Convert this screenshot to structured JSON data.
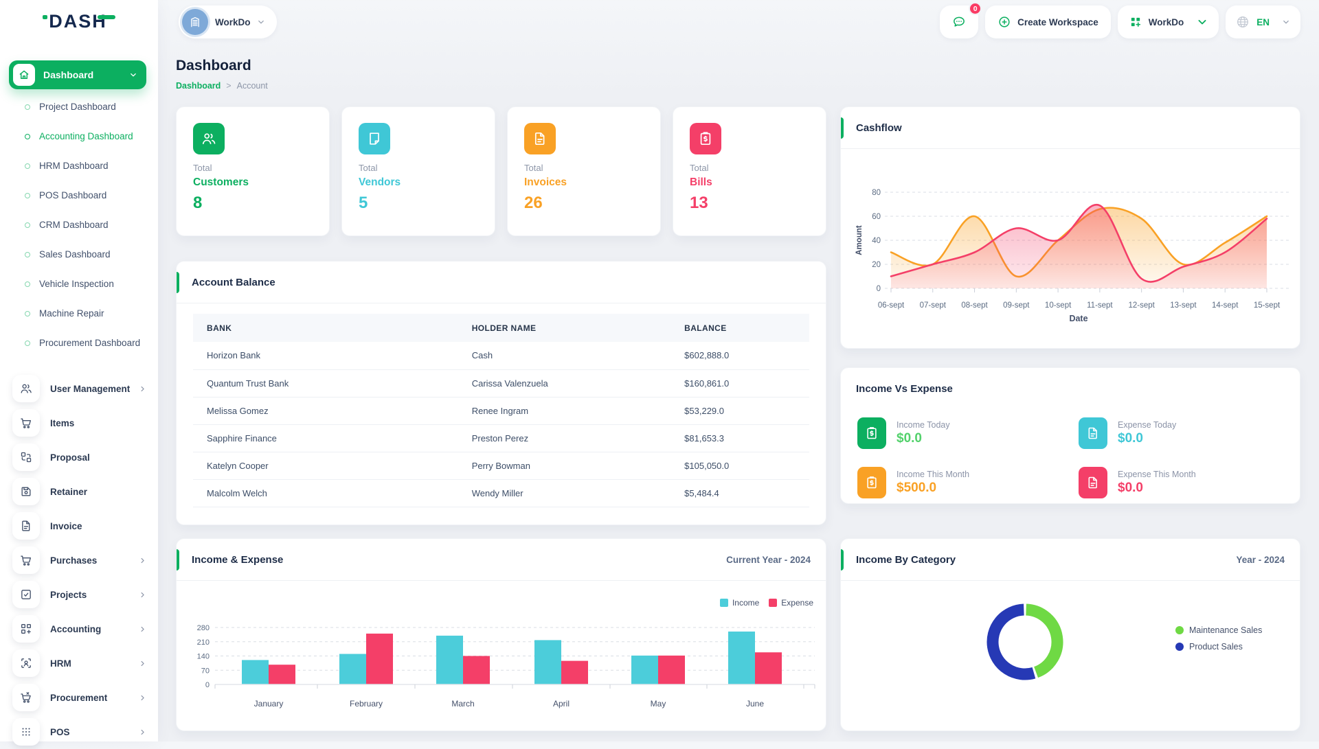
{
  "brand": {
    "logo_text": "DASH",
    "accent": "#0caf60"
  },
  "sidebar": {
    "main_item": {
      "label": "Dashboard"
    },
    "sub_items": [
      {
        "label": "Project Dashboard",
        "active": false
      },
      {
        "label": "Accounting Dashboard",
        "active": true
      },
      {
        "label": "HRM Dashboard",
        "active": false
      },
      {
        "label": "POS Dashboard",
        "active": false
      },
      {
        "label": "CRM Dashboard",
        "active": false
      },
      {
        "label": "Sales Dashboard",
        "active": false
      },
      {
        "label": "Vehicle Inspection",
        "active": false
      },
      {
        "label": "Machine Repair",
        "active": false
      },
      {
        "label": "Procurement Dashboard",
        "active": false
      }
    ],
    "sections": [
      {
        "label": "User Management",
        "icon": "users2",
        "chevron": true
      },
      {
        "label": "Items",
        "icon": "cart",
        "chevron": false
      },
      {
        "label": "Proposal",
        "icon": "swap",
        "chevron": false
      },
      {
        "label": "Retainer",
        "icon": "save",
        "chevron": false
      },
      {
        "label": "Invoice",
        "icon": "doclines",
        "chevron": false
      },
      {
        "label": "Purchases",
        "icon": "cart",
        "chevron": true
      },
      {
        "label": "Projects",
        "icon": "check",
        "chevron": true
      },
      {
        "label": "Accounting",
        "icon": "gridplus",
        "chevron": true
      },
      {
        "label": "HRM",
        "icon": "hrm",
        "chevron": true
      },
      {
        "label": "Procurement",
        "icon": "cartx",
        "chevron": true
      },
      {
        "label": "POS",
        "icon": "dots",
        "chevron": true
      }
    ]
  },
  "header": {
    "workspace_label": "WorkDo",
    "chat_badge": "0",
    "create_workspace_label": "Create Workspace",
    "account_label": "WorkDo",
    "language_label": "EN"
  },
  "page": {
    "title": "Dashboard",
    "breadcrumb_root": "Dashboard",
    "breadcrumb_sep": ">",
    "breadcrumb_current": "Account"
  },
  "stats": [
    {
      "prefix": "Total",
      "label": "Customers",
      "value": "8",
      "color": "#0caf60",
      "icon": "users2"
    },
    {
      "prefix": "Total",
      "label": "Vendors",
      "value": "5",
      "color": "#3fc7d6",
      "icon": "note"
    },
    {
      "prefix": "Total",
      "label": "Invoices",
      "value": "26",
      "color": "#f9a125",
      "icon": "doclines"
    },
    {
      "prefix": "Total",
      "label": "Bills",
      "value": "13",
      "color": "#f43f68",
      "icon": "clipdollar"
    }
  ],
  "account_balance": {
    "title": "Account Balance",
    "columns": [
      "BANK",
      "HOLDER NAME",
      "BALANCE"
    ],
    "rows": [
      [
        "Horizon Bank",
        "Cash",
        "$602,888.0"
      ],
      [
        "Quantum Trust Bank",
        "Carissa Valenzuela",
        "$160,861.0"
      ],
      [
        "Melissa Gomez",
        "Renee Ingram",
        "$53,229.0"
      ],
      [
        "Sapphire Finance",
        "Preston Perez",
        "$81,653.3"
      ],
      [
        "Katelyn Cooper",
        "Perry Bowman",
        "$105,050.0"
      ],
      [
        "Malcolm Welch",
        "Wendy Miller",
        "$5,484.4"
      ]
    ]
  },
  "income_vs_expense": {
    "title": "Income Vs Expense",
    "tiles": [
      {
        "label": "Income Today",
        "value": "$0.0",
        "icon": "clipdollar",
        "icon_bg": "#0caf60",
        "value_color": "#52d16b"
      },
      {
        "label": "Expense Today",
        "value": "$0.0",
        "icon": "doclines",
        "icon_bg": "#3fc7d6",
        "value_color": "#3fc7d6"
      },
      {
        "label": "Income This Month",
        "value": "$500.0",
        "icon": "clipdollar",
        "icon_bg": "#f9a125",
        "value_color": "#f9a125"
      },
      {
        "label": "Expense This Month",
        "value": "$0.0",
        "icon": "doclines",
        "icon_bg": "#f43f68",
        "value_color": "#f43f68"
      }
    ]
  },
  "chart_data": [
    {
      "id": "cashflow",
      "type": "area",
      "title": "Cashflow",
      "xlabel": "Date",
      "ylabel": "Amount",
      "ylim": [
        0,
        80
      ],
      "yticks": [
        0,
        20,
        40,
        60,
        80
      ],
      "grid": true,
      "x": [
        "06-sept",
        "07-sept",
        "08-sept",
        "09-sept",
        "10-sept",
        "11-sept",
        "12-sept",
        "13-sept",
        "14-sept",
        "15-sept"
      ],
      "series": [
        {
          "name": "orange",
          "color": "#f9a125",
          "values": [
            30,
            20,
            60,
            10,
            40,
            66,
            58,
            20,
            38,
            60
          ]
        },
        {
          "name": "pink",
          "color": "#f43f68",
          "values": [
            10,
            20,
            30,
            50,
            40,
            69,
            8,
            18,
            30,
            58
          ]
        }
      ]
    },
    {
      "id": "income_expense",
      "type": "bar",
      "title": "Income & Expense",
      "subtitle": "Current Year - 2024",
      "legend_position": "top-right",
      "categories": [
        "January",
        "February",
        "March",
        "April",
        "May",
        "June"
      ],
      "yticks": [
        0,
        70,
        140,
        210,
        280
      ],
      "ylim": [
        0,
        280
      ],
      "grid": true,
      "series": [
        {
          "name": "Income",
          "color": "#4ccdda",
          "values": [
            120,
            150,
            240,
            218,
            142,
            260
          ]
        },
        {
          "name": "Expense",
          "color": "#f43f68",
          "values": [
            97,
            250,
            140,
            116,
            142,
            158
          ]
        }
      ]
    },
    {
      "id": "income_by_category",
      "type": "pie",
      "title": "Income By Category",
      "subtitle": "Year - 2024",
      "legend_position": "right",
      "labels": [
        "Maintenance Sales",
        "Product Sales"
      ],
      "values": [
        45,
        55
      ],
      "colors": [
        "#6fd944",
        "#2639b5"
      ]
    }
  ]
}
